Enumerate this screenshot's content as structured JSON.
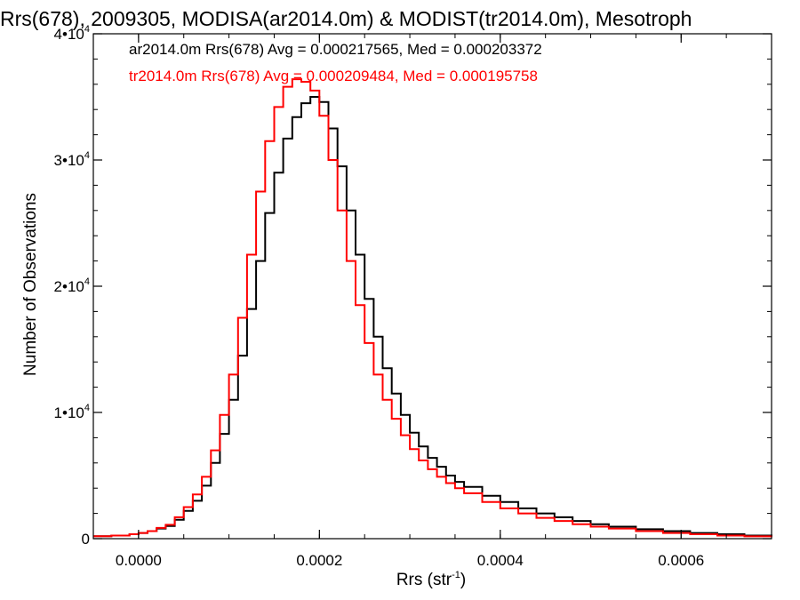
{
  "chart_data": {
    "type": "line",
    "title": "Rrs(678), 2009305, MODISA(ar2014.0m) & MODIST(tr2014.0m), Mesotroph",
    "xlabel": "Rrs (str",
    "xlabel_superscript": "-1",
    "xlabel_suffix": ")",
    "ylabel": "Number of Observations",
    "xlim": [
      -5e-05,
      0.0007
    ],
    "ylim": [
      0,
      40000
    ],
    "x_ticks": [
      {
        "value": 0.0,
        "label": "0.0000"
      },
      {
        "value": 0.0002,
        "label": "0.0002"
      },
      {
        "value": 0.0004,
        "label": "0.0004"
      },
      {
        "value": 0.0006,
        "label": "0.0006"
      }
    ],
    "y_ticks": [
      {
        "value": 0,
        "label": "0",
        "exp": ""
      },
      {
        "value": 10000,
        "label": "1•10",
        "exp": "4"
      },
      {
        "value": 20000,
        "label": "2•10",
        "exp": "4"
      },
      {
        "value": 30000,
        "label": "3•10",
        "exp": "4"
      },
      {
        "value": 40000,
        "label": "4•10",
        "exp": "4"
      }
    ],
    "grid": false,
    "legend_position": "top-left",
    "series": [
      {
        "legend": "ar2014.0m Rrs(678) Avg = 0.000217565, Med = 0.000203372",
        "color": "#000000",
        "x": [
          -5e-05,
          -3e-05,
          -1e-05,
          0.0,
          1e-05,
          2e-05,
          3e-05,
          4e-05,
          5e-05,
          6e-05,
          7e-05,
          8e-05,
          9e-05,
          0.0001,
          0.00011,
          0.00012,
          0.00013,
          0.00014,
          0.00015,
          0.00016,
          0.00017,
          0.00018,
          0.00019,
          0.0002,
          0.00021,
          0.00022,
          0.00023,
          0.00024,
          0.00025,
          0.00026,
          0.00027,
          0.00028,
          0.00029,
          0.0003,
          0.00031,
          0.00032,
          0.00033,
          0.00034,
          0.00035,
          0.00036,
          0.00038,
          0.0004,
          0.00042,
          0.00044,
          0.00046,
          0.00048,
          0.0005,
          0.00052,
          0.00055,
          0.00058,
          0.00061,
          0.00064,
          0.00067,
          0.0007
        ],
        "y": [
          200,
          250,
          350,
          450,
          600,
          800,
          1000,
          1500,
          2200,
          3000,
          4200,
          6000,
          8300,
          11000,
          14500,
          18200,
          22000,
          25800,
          29000,
          31700,
          33400,
          34500,
          35000,
          34600,
          32500,
          29500,
          26000,
          22500,
          19000,
          16000,
          13500,
          11500,
          9800,
          8400,
          7300,
          6400,
          5700,
          5000,
          4500,
          4100,
          3400,
          2900,
          2400,
          2000,
          1700,
          1400,
          1150,
          950,
          750,
          600,
          450,
          350,
          250,
          150
        ]
      },
      {
        "legend": "tr2014.0m Rrs(678) Avg = 0.000209484, Med = 0.000195758",
        "color": "#ff0000",
        "x": [
          -5e-05,
          -3e-05,
          -1e-05,
          0.0,
          1e-05,
          2e-05,
          3e-05,
          4e-05,
          5e-05,
          6e-05,
          7e-05,
          8e-05,
          9e-05,
          0.0001,
          0.00011,
          0.00012,
          0.00013,
          0.00014,
          0.00015,
          0.00016,
          0.00017,
          0.00018,
          0.00019,
          0.0002,
          0.00021,
          0.00022,
          0.00023,
          0.00024,
          0.00025,
          0.00026,
          0.00027,
          0.00028,
          0.00029,
          0.0003,
          0.00031,
          0.00032,
          0.00033,
          0.00034,
          0.00035,
          0.00036,
          0.00038,
          0.0004,
          0.00042,
          0.00044,
          0.00046,
          0.00048,
          0.0005,
          0.00052,
          0.00055,
          0.00058,
          0.00061,
          0.00064,
          0.00067,
          0.0007
        ],
        "y": [
          200,
          250,
          350,
          450,
          600,
          850,
          1100,
          1700,
          2500,
          3500,
          4900,
          7000,
          9800,
          13000,
          17500,
          22500,
          27500,
          31500,
          34200,
          35800,
          36400,
          36200,
          35500,
          33500,
          30000,
          26000,
          22000,
          18500,
          15500,
          13000,
          11000,
          9500,
          8200,
          7100,
          6200,
          5500,
          4900,
          4400,
          4000,
          3600,
          2900,
          2400,
          2000,
          1650,
          1400,
          1150,
          950,
          800,
          600,
          450,
          350,
          250,
          180,
          120
        ]
      }
    ]
  }
}
